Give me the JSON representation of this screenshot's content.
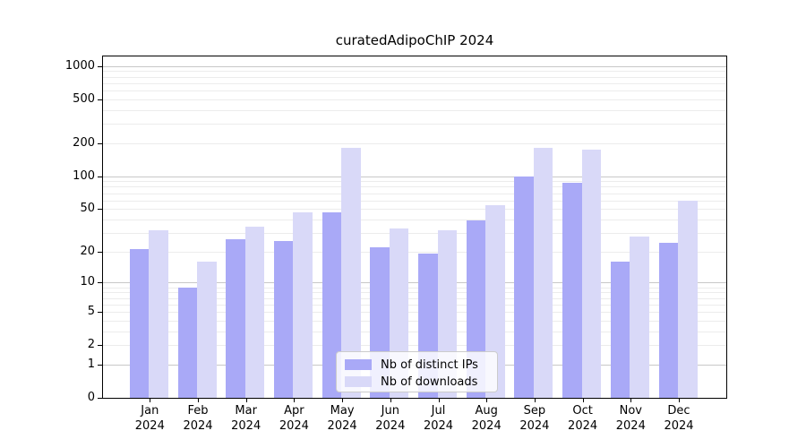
{
  "title": "curatedAdipoChIP 2024",
  "legend": {
    "items": [
      {
        "label": "Nb of distinct IPs",
        "color": "#a9a9f7"
      },
      {
        "label": "Nb of downloads",
        "color": "#d9d9f8"
      }
    ]
  },
  "x_axis": {
    "months": [
      "Jan",
      "Feb",
      "Mar",
      "Apr",
      "May",
      "Jun",
      "Jul",
      "Aug",
      "Sep",
      "Oct",
      "Nov",
      "Dec"
    ],
    "year": "2024"
  },
  "y_axis": {
    "ticks": [
      0,
      1,
      2,
      5,
      10,
      20,
      50,
      100,
      200,
      500,
      1000
    ],
    "scale": "log10(1+y)"
  },
  "chart_data": {
    "type": "bar",
    "title": "curatedAdipoChIP 2024",
    "categories": [
      "Jan 2024",
      "Feb 2024",
      "Mar 2024",
      "Apr 2024",
      "May 2024",
      "Jun 2024",
      "Jul 2024",
      "Aug 2024",
      "Sep 2024",
      "Oct 2024",
      "Nov 2024",
      "Dec 2024"
    ],
    "series": [
      {
        "name": "Nb of distinct IPs",
        "color": "#a9a9f7",
        "values": [
          21,
          9,
          26,
          25,
          47,
          22,
          19,
          39,
          100,
          87,
          16,
          24
        ]
      },
      {
        "name": "Nb of downloads",
        "color": "#d9d9f8",
        "values": [
          32,
          16,
          34,
          47,
          180,
          33,
          32,
          54,
          180,
          176,
          28,
          60
        ]
      }
    ],
    "xlabel": "",
    "ylabel": "",
    "ylim": [
      0,
      1210
    ],
    "yticks": [
      0,
      1,
      2,
      5,
      10,
      20,
      50,
      100,
      200,
      500,
      1000
    ],
    "yscale": "log1p",
    "grid": "horizontal major+minor",
    "legend_position": "lower center inside"
  },
  "colors": {
    "major_grid": "#c8c8c8",
    "minor_grid": "#ececec",
    "axis": "#000000",
    "background": "#ffffff"
  }
}
